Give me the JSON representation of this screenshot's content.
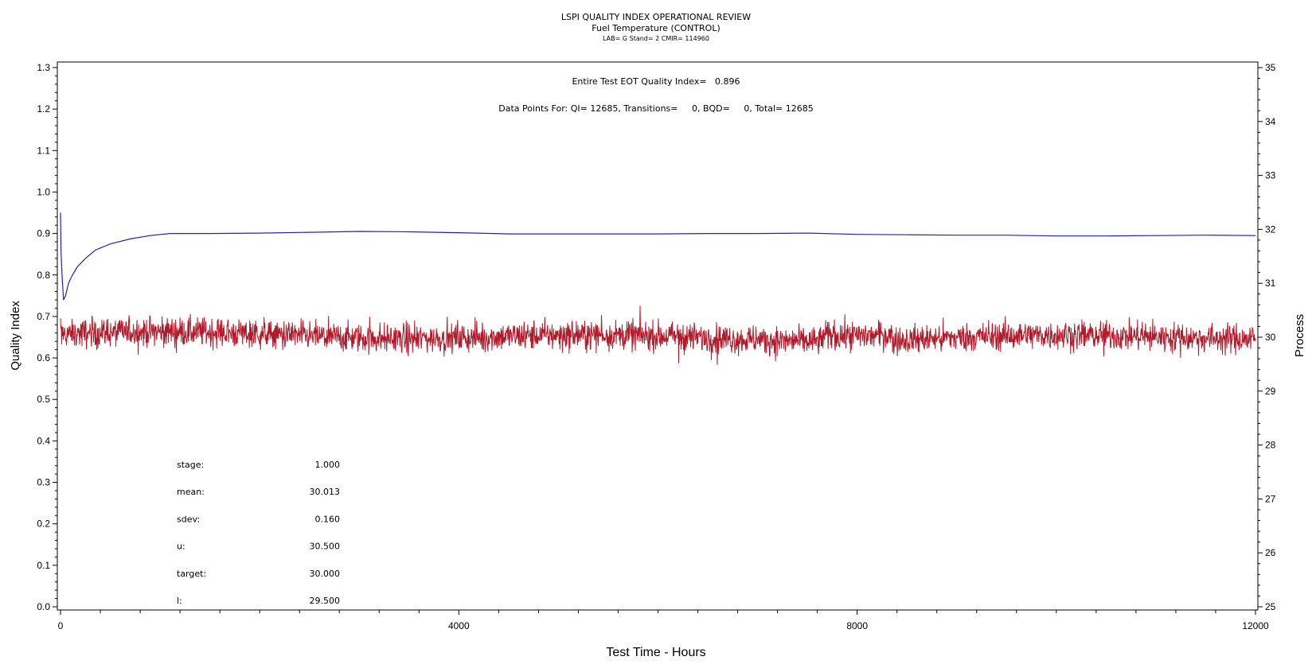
{
  "chart_data": {
    "type": "line",
    "title": "LSPI QUALITY INDEX OPERATIONAL REVIEW",
    "subtitle": "Fuel Temperature (CONTROL)",
    "subtitle2": "LAB= G Stand= 2 CMIR= 114960",
    "xlabel": "Test Time - Hours",
    "ylabel_left": "Quality Index",
    "ylabel_right": "Process",
    "xlim": [
      0,
      12000
    ],
    "ylim_left": [
      0.0,
      1.3
    ],
    "ylim_right": [
      25,
      35
    ],
    "x_ticks": [
      "0",
      "4000",
      "8000",
      "12000"
    ],
    "y_left_ticks": [
      "0.0",
      "0.1",
      "0.2",
      "0.3",
      "0.4",
      "0.5",
      "0.6",
      "0.7",
      "0.8",
      "0.9",
      "1.0",
      "1.1",
      "1.2",
      "1.3"
    ],
    "y_right_ticks": [
      "25",
      "26",
      "27",
      "28",
      "29",
      "30",
      "31",
      "32",
      "33",
      "34",
      "35"
    ],
    "annotation_qi": "Entire Test EOT Quality Index=   0.896",
    "annotation_points": "Data Points For: QI= 12685, Transitions=     0, BQD=     0, Total= 12685",
    "stats": [
      {
        "label": "stage:",
        "value": "1.000"
      },
      {
        "label": "mean:",
        "value": "30.013"
      },
      {
        "label": "sdev:",
        "value": "0.160"
      },
      {
        "label": "u:",
        "value": "30.500"
      },
      {
        "label": "target:",
        "value": "30.000"
      },
      {
        "label": "l:",
        "value": "29.500"
      }
    ],
    "series": [
      {
        "axis": "left",
        "color": "#2222bb",
        "x": [
          0,
          5,
          15,
          30,
          50,
          80,
          120,
          170,
          250,
          350,
          500,
          700,
          900,
          1100,
          1500,
          2000,
          2500,
          3000,
          3500,
          4000,
          4500,
          5000,
          5500,
          6000,
          6500,
          7000,
          7500,
          8000,
          8500,
          9000,
          9500,
          10000,
          10500,
          11000,
          11500,
          12000
        ],
        "values": [
          0.95,
          0.86,
          0.8,
          0.74,
          0.75,
          0.78,
          0.8,
          0.82,
          0.84,
          0.86,
          0.875,
          0.887,
          0.895,
          0.9,
          0.9,
          0.901,
          0.903,
          0.905,
          0.904,
          0.902,
          0.899,
          0.899,
          0.899,
          0.899,
          0.9,
          0.9,
          0.901,
          0.898,
          0.897,
          0.896,
          0.896,
          0.894,
          0.894,
          0.895,
          0.896,
          0.895
        ]
      },
      {
        "axis": "right",
        "color": "#b01a2a",
        "mean": 30.013,
        "sdev": 0.16,
        "min": 29.3,
        "max": 30.8
      }
    ]
  }
}
